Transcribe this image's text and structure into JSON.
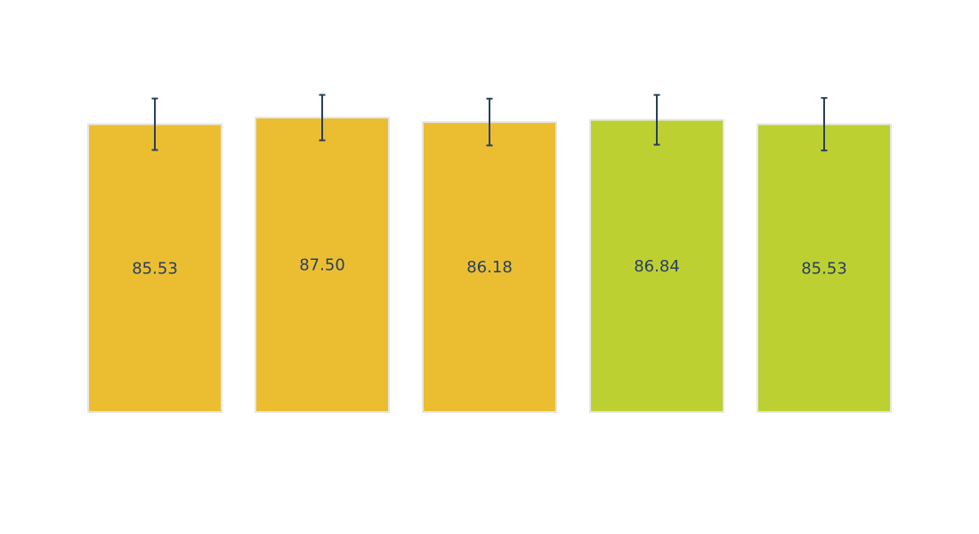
{
  "chart_data": {
    "type": "bar",
    "title": "",
    "xlabel": "",
    "ylabel": "",
    "ylim": [
      0,
      96
    ],
    "grid": false,
    "legend": "none",
    "values": [
      85.53,
      87.5,
      86.18,
      86.84,
      85.53
    ],
    "labels": [
      "85.53",
      "87.50",
      "86.18",
      "86.84",
      "85.53"
    ],
    "error": [
      15.3,
      13.5,
      13.9,
      14.8,
      15.6
    ],
    "colors": [
      "#ebbe32",
      "#ebbe32",
      "#ebbe32",
      "#bdd032",
      "#bdd032"
    ],
    "bar_border_color": "#e6e6e6",
    "error_bar_color": "#2a3f5f",
    "label_color": "#2a3f5f"
  }
}
